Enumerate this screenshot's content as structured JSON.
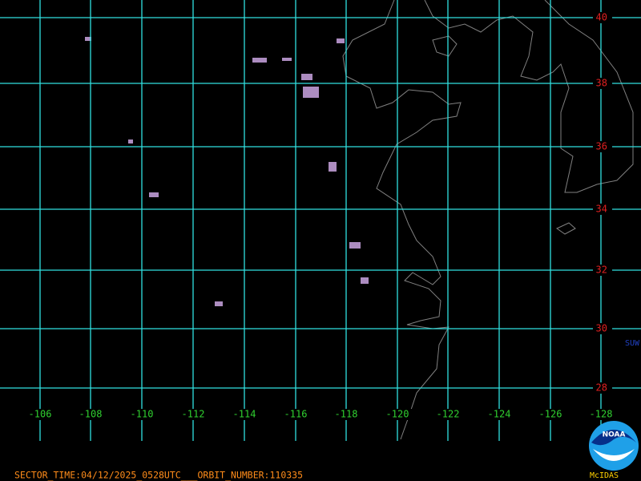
{
  "map": {
    "lat_labels": [
      "40",
      "38",
      "36",
      "34",
      "32",
      "30",
      "28"
    ],
    "lon_labels": [
      "-106",
      "-108",
      "-110",
      "-112",
      "-114",
      "-116",
      "-118",
      "-120",
      "-122",
      "-124",
      "-126",
      "-128"
    ],
    "station": "SUW",
    "logo": {
      "text": "NOAA",
      "caption": "McIDAS"
    },
    "footer": "SECTOR_TIME:04/12/2025_0528UTC___ORBIT_NUMBER:110335"
  }
}
